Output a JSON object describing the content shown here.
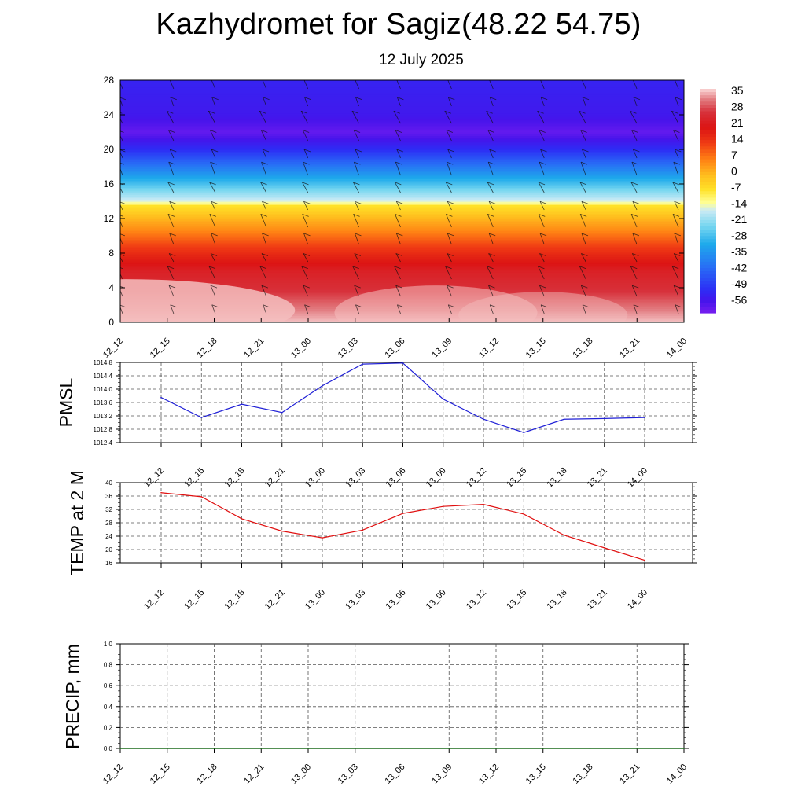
{
  "header": {
    "title": "Kazhydromet for Sagiz(48.22 54.75)",
    "subtitle": "12 July 2025"
  },
  "time_labels": [
    "12_12",
    "12_15",
    "12_18",
    "12_21",
    "13_00",
    "13_03",
    "13_06",
    "13_09",
    "13_12",
    "13_15",
    "13_18",
    "13_21",
    "14_00"
  ],
  "colors": {
    "pmsl_line": "#1f1fd6",
    "temp_line": "#e01010",
    "precip_line": "#1a6b1a",
    "grid": "#000000"
  },
  "chart_data": [
    {
      "type": "heatmap",
      "title": "",
      "ylim": [
        0,
        28
      ],
      "y_ticks": [
        "0",
        "4",
        "8",
        "12",
        "16",
        "20",
        "24",
        "28"
      ],
      "x_ticks": [
        "12_12",
        "12_15",
        "12_18",
        "12_21",
        "13_00",
        "13_03",
        "13_06",
        "13_09",
        "13_12",
        "13_15",
        "13_18",
        "13_21",
        "14_00"
      ],
      "colorbar_labels": [
        "35",
        "28",
        "21",
        "14",
        "7",
        "0",
        "-7",
        "-14",
        "-21",
        "-28",
        "-35",
        "-42",
        "-49",
        "-56"
      ],
      "colorbar_range": [
        -60,
        38
      ],
      "temperature_profile": [
        {
          "level": 0,
          "value": 37
        },
        {
          "level": 2,
          "value": 32
        },
        {
          "level": 4,
          "value": 27
        },
        {
          "level": 6,
          "value": 24
        },
        {
          "level": 8,
          "value": 17
        },
        {
          "level": 10,
          "value": 9
        },
        {
          "level": 12,
          "value": 1
        },
        {
          "level": 13.5,
          "value": -6
        },
        {
          "level": 14,
          "value": -14
        },
        {
          "level": 16,
          "value": -26
        },
        {
          "level": 18,
          "value": -38
        },
        {
          "level": 20,
          "value": -50
        },
        {
          "level": 22,
          "value": -58
        },
        {
          "level": 24,
          "value": -54
        },
        {
          "level": 28,
          "value": -52
        }
      ],
      "wind_barbs": "shown"
    },
    {
      "type": "line",
      "ylabel": "PMSL",
      "categories": [
        "12_12",
        "12_15",
        "12_18",
        "12_21",
        "13_00",
        "13_03",
        "13_06",
        "13_09",
        "13_12",
        "13_15",
        "13_18",
        "13_21",
        "14_00"
      ],
      "series": [
        {
          "values": [
            1013.75,
            1013.15,
            1013.55,
            1013.3,
            1014.1,
            1014.75,
            1014.78,
            1013.7,
            1013.1,
            1012.7,
            1013.1,
            1013.12,
            1013.15
          ]
        }
      ],
      "ylim": [
        1012.4,
        1014.8
      ],
      "y_ticks": [
        "1012.4",
        "1012.8",
        "1013.2",
        "1013.6",
        "1014.0",
        "1014.4",
        "1014.8"
      ],
      "grid": true
    },
    {
      "type": "line",
      "ylabel": "TEMP at 2 M",
      "categories": [
        "12_12",
        "12_15",
        "12_18",
        "12_21",
        "13_00",
        "13_03",
        "13_06",
        "13_09",
        "13_12",
        "13_15",
        "13_18",
        "13_21",
        "14_00"
      ],
      "series": [
        {
          "values": [
            37,
            35.8,
            29.2,
            25.5,
            23.5,
            25.8,
            30.8,
            32.9,
            33.5,
            30.6,
            24.3,
            20.5,
            16.8
          ]
        }
      ],
      "ylim": [
        16,
        40
      ],
      "y_ticks": [
        "16",
        "20",
        "24",
        "28",
        "32",
        "36",
        "40"
      ],
      "grid": true
    },
    {
      "type": "line",
      "ylabel": "PRECIP, mm",
      "categories": [
        "12_12",
        "12_15",
        "12_18",
        "12_21",
        "13_00",
        "13_03",
        "13_06",
        "13_09",
        "13_12",
        "13_15",
        "13_18",
        "13_21",
        "14_00"
      ],
      "series": [
        {
          "values": [
            0,
            0,
            0,
            0,
            0,
            0,
            0,
            0,
            0,
            0,
            0,
            0,
            0
          ]
        }
      ],
      "ylim": [
        0,
        1.0
      ],
      "y_ticks": [
        "0.0",
        "0.2",
        "0.4",
        "0.6",
        "0.8",
        "1.0"
      ],
      "grid": true
    }
  ]
}
